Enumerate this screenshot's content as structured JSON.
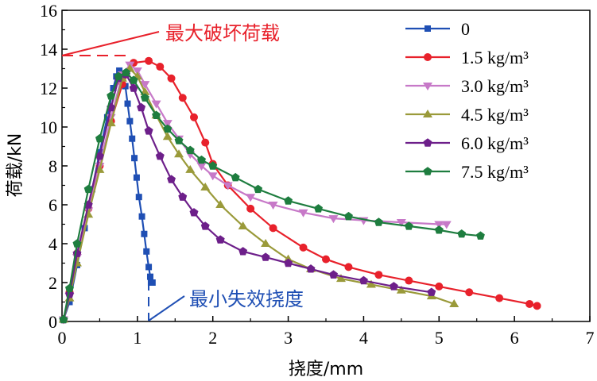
{
  "chart_data": {
    "type": "line",
    "xlabel": "挠度/mm",
    "ylabel": "荷载/kN",
    "xlim": [
      0,
      7
    ],
    "ylim": [
      0,
      16
    ],
    "x_ticks": [
      "0",
      "1",
      "2",
      "3",
      "4",
      "5",
      "6",
      "7"
    ],
    "y_ticks": [
      "0",
      "2",
      "4",
      "6",
      "8",
      "10",
      "12",
      "14",
      "16"
    ],
    "grid": false,
    "legend_position": "top-right",
    "annotations": {
      "max_load": "最大破坏荷载",
      "min_deflection": "最小失效挠度"
    },
    "series": [
      {
        "name": "0",
        "color": "#1f4fb4",
        "marker": "square",
        "x": [
          0.02,
          0.1,
          0.2,
          0.3,
          0.4,
          0.5,
          0.6,
          0.68,
          0.72,
          0.76,
          0.8,
          0.84,
          0.87,
          0.9,
          0.93,
          0.96,
          0.99,
          1.02,
          1.06,
          1.09,
          1.12,
          1.15,
          1.17,
          1.18,
          1.2
        ],
        "y": [
          0.1,
          1.0,
          2.9,
          4.8,
          6.8,
          8.7,
          10.5,
          12.0,
          12.6,
          12.9,
          12.7,
          12.1,
          11.2,
          10.3,
          9.4,
          8.4,
          7.4,
          6.4,
          5.4,
          4.5,
          3.6,
          2.8,
          2.3,
          2.0,
          2.0
        ]
      },
      {
        "name": "1.5 kg/m³",
        "color": "#e8212b",
        "marker": "circle",
        "x": [
          0.02,
          0.1,
          0.2,
          0.35,
          0.5,
          0.65,
          0.8,
          0.95,
          1.15,
          1.3,
          1.45,
          1.6,
          1.75,
          1.9,
          2.0,
          2.2,
          2.5,
          2.8,
          3.2,
          3.5,
          3.8,
          4.2,
          4.6,
          5.0,
          5.4,
          5.8,
          6.2,
          6.3
        ],
        "y": [
          0.1,
          1.5,
          3.5,
          5.8,
          8.0,
          10.3,
          12.2,
          13.3,
          13.4,
          13.1,
          12.5,
          11.5,
          10.5,
          9.2,
          8.1,
          7.0,
          5.8,
          4.8,
          3.8,
          3.2,
          2.8,
          2.4,
          2.1,
          1.8,
          1.5,
          1.2,
          0.9,
          0.8
        ]
      },
      {
        "name": "3.0 kg/m³",
        "color": "#c779c8",
        "marker": "triangle-down",
        "x": [
          0.02,
          0.1,
          0.2,
          0.35,
          0.5,
          0.65,
          0.8,
          0.9,
          1.0,
          1.1,
          1.25,
          1.4,
          1.55,
          1.7,
          1.85,
          2.0,
          2.2,
          2.5,
          2.8,
          3.2,
          3.6,
          4.0,
          4.5,
          5.0,
          5.1
        ],
        "y": [
          0.1,
          1.3,
          3.3,
          5.7,
          8.0,
          10.5,
          12.7,
          13.2,
          12.9,
          12.2,
          11.2,
          10.2,
          9.4,
          8.6,
          8.0,
          7.5,
          7.0,
          6.4,
          6.0,
          5.6,
          5.3,
          5.2,
          5.1,
          5.0,
          5.0
        ]
      },
      {
        "name": "4.5 kg/m³",
        "color": "#9a9a3a",
        "marker": "triangle-up",
        "x": [
          0.02,
          0.1,
          0.2,
          0.35,
          0.5,
          0.65,
          0.8,
          0.9,
          1.0,
          1.1,
          1.25,
          1.4,
          1.55,
          1.7,
          1.9,
          2.1,
          2.4,
          2.7,
          3.0,
          3.3,
          3.7,
          4.1,
          4.5,
          4.9,
          5.2
        ],
        "y": [
          0.1,
          1.2,
          3.0,
          5.5,
          7.8,
          10.2,
          12.5,
          13.0,
          12.6,
          11.8,
          10.6,
          9.5,
          8.6,
          7.8,
          6.9,
          6.0,
          4.9,
          4.0,
          3.2,
          2.7,
          2.2,
          1.9,
          1.6,
          1.3,
          0.9
        ]
      },
      {
        "name": "6.0 kg/m³",
        "color": "#6d1f8a",
        "marker": "pentagon",
        "x": [
          0.02,
          0.1,
          0.2,
          0.35,
          0.5,
          0.65,
          0.75,
          0.85,
          0.95,
          1.05,
          1.15,
          1.3,
          1.45,
          1.6,
          1.75,
          1.9,
          2.1,
          2.4,
          2.7,
          3.0,
          3.3,
          3.6,
          4.0,
          4.4,
          4.9
        ],
        "y": [
          0.1,
          1.4,
          3.5,
          6.0,
          8.5,
          11.0,
          12.5,
          12.7,
          12.0,
          11.0,
          9.8,
          8.5,
          7.3,
          6.4,
          5.6,
          4.9,
          4.2,
          3.6,
          3.3,
          3.0,
          2.7,
          2.4,
          2.1,
          1.8,
          1.5
        ]
      },
      {
        "name": "7.5 kg/m³",
        "color": "#1e7d3f",
        "marker": "pentagon",
        "x": [
          0.02,
          0.1,
          0.2,
          0.35,
          0.5,
          0.65,
          0.75,
          0.85,
          0.95,
          1.1,
          1.25,
          1.4,
          1.55,
          1.7,
          1.85,
          2.0,
          2.3,
          2.6,
          3.0,
          3.4,
          3.8,
          4.2,
          4.6,
          5.0,
          5.3,
          5.55
        ],
        "y": [
          0.1,
          1.7,
          4.0,
          6.8,
          9.4,
          11.6,
          12.6,
          12.8,
          12.4,
          11.5,
          10.6,
          9.9,
          9.3,
          8.8,
          8.3,
          8.0,
          7.4,
          6.8,
          6.2,
          5.8,
          5.4,
          5.1,
          4.9,
          4.7,
          4.5,
          4.4
        ]
      }
    ]
  }
}
